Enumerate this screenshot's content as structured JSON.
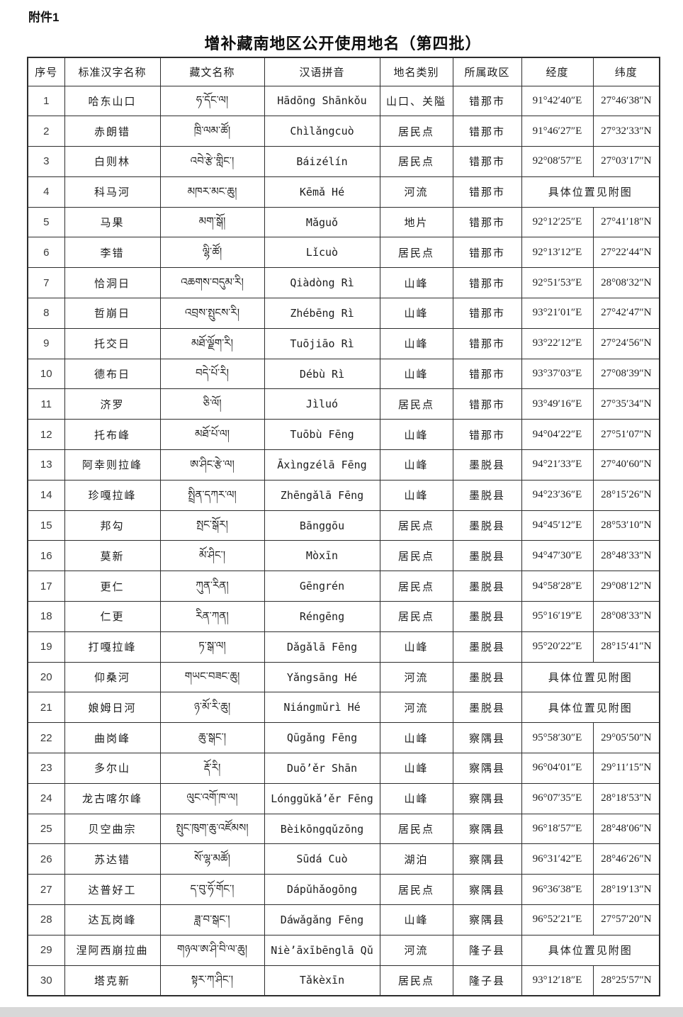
{
  "page": {
    "attachment_label": "附件1",
    "title": "增补藏南地区公开使用地名（第四批）"
  },
  "colors": {
    "paper": "#ffffff",
    "table_border": "#2d2d2d",
    "footer_bar": "#d8d8d8",
    "text": "#1c1c1c"
  },
  "table": {
    "headers": [
      "序号",
      "标准汉字名称",
      "藏文名称",
      "汉语拼音",
      "地名类别",
      "所属政区",
      "经度",
      "纬度"
    ],
    "merged_note": "具体位置见附图",
    "rows": [
      {
        "num": "1",
        "name": "哈东山口",
        "tibetan": "ཧ་དོང་ལ།",
        "pinyin": "Hādōng Shānkǒu",
        "category": "山口、关隘",
        "region": "错那市",
        "longitude": "91°42′40″E",
        "latitude": "27°46′38″N",
        "merged": false
      },
      {
        "num": "2",
        "name": "赤朗错",
        "tibetan": "ཁྲི་ལམ་ཚོ།",
        "pinyin": "Chìlǎngcuò",
        "category": "居民点",
        "region": "错那市",
        "longitude": "91°46′27″E",
        "latitude": "27°32′33″N",
        "merged": false
      },
      {
        "num": "3",
        "name": "白则林",
        "tibetan": "འབེ་རྩེ་གླིང་།",
        "pinyin": "Báizélín",
        "category": "居民点",
        "region": "错那市",
        "longitude": "92°08′57″E",
        "latitude": "27°03′17″N",
        "merged": false
      },
      {
        "num": "4",
        "name": "科马河",
        "tibetan": "མཁར་མང་ཆུ།",
        "pinyin": "Kēmǎ Hé",
        "category": "河流",
        "region": "错那市",
        "longitude": "",
        "latitude": "",
        "merged": true
      },
      {
        "num": "5",
        "name": "马果",
        "tibetan": "མག་སྒོ།",
        "pinyin": "Mǎguǒ",
        "category": "地片",
        "region": "错那市",
        "longitude": "92°12′25″E",
        "latitude": "27°41′18″N",
        "merged": false
      },
      {
        "num": "6",
        "name": "李错",
        "tibetan": "ལྷི་ཚོ།",
        "pinyin": "Lǐcuò",
        "category": "居民点",
        "region": "错那市",
        "longitude": "92°13′12″E",
        "latitude": "27°22′44″N",
        "merged": false
      },
      {
        "num": "7",
        "name": "恰洞日",
        "tibetan": "འཆགས་བདུམ་རི།",
        "pinyin": "Qiàdòng Rì",
        "category": "山峰",
        "region": "错那市",
        "longitude": "92°51′53″E",
        "latitude": "28°08′32″N",
        "merged": false
      },
      {
        "num": "8",
        "name": "哲崩日",
        "tibetan": "འབྲས་སྤུངས་རི།",
        "pinyin": "Zhébēng Rì",
        "category": "山峰",
        "region": "错那市",
        "longitude": "93°21′01″E",
        "latitude": "27°42′47″N",
        "merged": false
      },
      {
        "num": "9",
        "name": "托交日",
        "tibetan": "མཐོ་ལྗོག་རི།",
        "pinyin": "Tuōjiāo Rì",
        "category": "山峰",
        "region": "错那市",
        "longitude": "93°22′12″E",
        "latitude": "27°24′56″N",
        "merged": false
      },
      {
        "num": "10",
        "name": "德布日",
        "tibetan": "བདེ་པོ་རི།",
        "pinyin": "Débù Rì",
        "category": "山峰",
        "region": "错那市",
        "longitude": "93°37′03″E",
        "latitude": "27°08′39″N",
        "merged": false
      },
      {
        "num": "11",
        "name": "济罗",
        "tibetan": "ཅི་ལོ།",
        "pinyin": "Jìluó",
        "category": "居民点",
        "region": "错那市",
        "longitude": "93°49′16″E",
        "latitude": "27°35′34″N",
        "merged": false
      },
      {
        "num": "12",
        "name": "托布峰",
        "tibetan": "མཐོ་པོ་ལ།",
        "pinyin": "Tuōbù Fēng",
        "category": "山峰",
        "region": "错那市",
        "longitude": "94°04′22″E",
        "latitude": "27°51′07″N",
        "merged": false
      },
      {
        "num": "13",
        "name": "阿幸则拉峰",
        "tibetan": "ཨ་ཤིང་རྩེ་ལ།",
        "pinyin": "Āxìngzélā Fēng",
        "category": "山峰",
        "region": "墨脱县",
        "longitude": "94°21′33″E",
        "latitude": "27°40′60″N",
        "merged": false
      },
      {
        "num": "14",
        "name": "珍嘎拉峰",
        "tibetan": "སྤྲིན་དཀར་ལ།",
        "pinyin": "Zhēngǎlā Fēng",
        "category": "山峰",
        "region": "墨脱县",
        "longitude": "94°23′36″E",
        "latitude": "28°15′26″N",
        "merged": false
      },
      {
        "num": "15",
        "name": "邦勾",
        "tibetan": "སྤང་སྒོར།",
        "pinyin": "Bānggōu",
        "category": "居民点",
        "region": "墨脱县",
        "longitude": "94°45′12″E",
        "latitude": "28°53′10″N",
        "merged": false
      },
      {
        "num": "16",
        "name": "莫新",
        "tibetan": "མོ་ཤིང་།",
        "pinyin": "Mòxīn",
        "category": "居民点",
        "region": "墨脱县",
        "longitude": "94°47′30″E",
        "latitude": "28°48′33″N",
        "merged": false
      },
      {
        "num": "17",
        "name": "更仁",
        "tibetan": "ཀུན་རིན།",
        "pinyin": "Gēngrén",
        "category": "居民点",
        "region": "墨脱县",
        "longitude": "94°58′28″E",
        "latitude": "29°08′12″N",
        "merged": false
      },
      {
        "num": "18",
        "name": "仁更",
        "tibetan": "རིན་ཀན།",
        "pinyin": "Réngēng",
        "category": "居民点",
        "region": "墨脱县",
        "longitude": "95°16′19″E",
        "latitude": "28°08′33″N",
        "merged": false
      },
      {
        "num": "19",
        "name": "打嘎拉峰",
        "tibetan": "ཏ་སྒ་ལ།",
        "pinyin": "Dǎgǎlā Fēng",
        "category": "山峰",
        "region": "墨脱县",
        "longitude": "95°20′22″E",
        "latitude": "28°15′41″N",
        "merged": false
      },
      {
        "num": "20",
        "name": "仰桑河",
        "tibetan": "གཡང་བཟང་ཆུ།",
        "pinyin": "Yǎngsāng Hé",
        "category": "河流",
        "region": "墨脱县",
        "longitude": "",
        "latitude": "",
        "merged": true
      },
      {
        "num": "21",
        "name": "娘姆日河",
        "tibetan": "ཉ་མོ་རི་ཆུ།",
        "pinyin": "Niángmǔrì Hé",
        "category": "河流",
        "region": "墨脱县",
        "longitude": "",
        "latitude": "",
        "merged": true
      },
      {
        "num": "22",
        "name": "曲岗峰",
        "tibetan": "ཆུ་སྒང་།",
        "pinyin": "Qūgǎng Fēng",
        "category": "山峰",
        "region": "察隅县",
        "longitude": "95°58′30″E",
        "latitude": "29°05′50″N",
        "merged": false
      },
      {
        "num": "23",
        "name": "多尔山",
        "tibetan": "རྡོ་རི།",
        "pinyin": "Duō’ěr Shān",
        "category": "山峰",
        "region": "察隅县",
        "longitude": "96°04′01″E",
        "latitude": "29°11′15″N",
        "merged": false
      },
      {
        "num": "24",
        "name": "龙古喀尔峰",
        "tibetan": "ལུང་འགོ་ཁ་ལ།",
        "pinyin": "Lónggǔkǎ’ěr Fēng",
        "category": "山峰",
        "region": "察隅县",
        "longitude": "96°07′35″E",
        "latitude": "28°18′53″N",
        "merged": false
      },
      {
        "num": "25",
        "name": "贝空曲宗",
        "tibetan": "སྤུང་ཁུག་ཆུ་འཛོམས།",
        "pinyin": "Bèikōngqǔzōng",
        "category": "居民点",
        "region": "察隅县",
        "longitude": "96°18′57″E",
        "latitude": "28°48′06″N",
        "merged": false
      },
      {
        "num": "26",
        "name": "苏达错",
        "tibetan": "སོ་ལྷ་མཚོ།",
        "pinyin": "Sūdá Cuò",
        "category": "湖泊",
        "region": "察隅县",
        "longitude": "96°31′42″E",
        "latitude": "28°46′26″N",
        "merged": false
      },
      {
        "num": "27",
        "name": "达普好工",
        "tibetan": "ད་བུ་ཧོ་གོང་།",
        "pinyin": "Dápǔhǎogōng",
        "category": "居民点",
        "region": "察隅县",
        "longitude": "96°36′38″E",
        "latitude": "28°19′13″N",
        "merged": false
      },
      {
        "num": "28",
        "name": "达瓦岗峰",
        "tibetan": "ཟླ་བ་སྒང་།",
        "pinyin": "Dáwǎgǎng Fēng",
        "category": "山峰",
        "region": "察隅县",
        "longitude": "96°52′21″E",
        "latitude": "27°57′20″N",
        "merged": false
      },
      {
        "num": "29",
        "name": "涅阿西崩拉曲",
        "tibetan": "གཉལ་ཨ་ཤི་བི་ལ་ཆུ།",
        "pinyin": "Niè’āxībēnglā Qǔ",
        "category": "河流",
        "region": "隆子县",
        "longitude": "",
        "latitude": "",
        "merged": true
      },
      {
        "num": "30",
        "name": "塔克新",
        "tibetan": "སྟར་ཀ་ཤིང་།",
        "pinyin": "Tǎkèxīn",
        "category": "居民点",
        "region": "隆子县",
        "longitude": "93°12′18″E",
        "latitude": "28°25′57″N",
        "merged": false
      }
    ]
  }
}
